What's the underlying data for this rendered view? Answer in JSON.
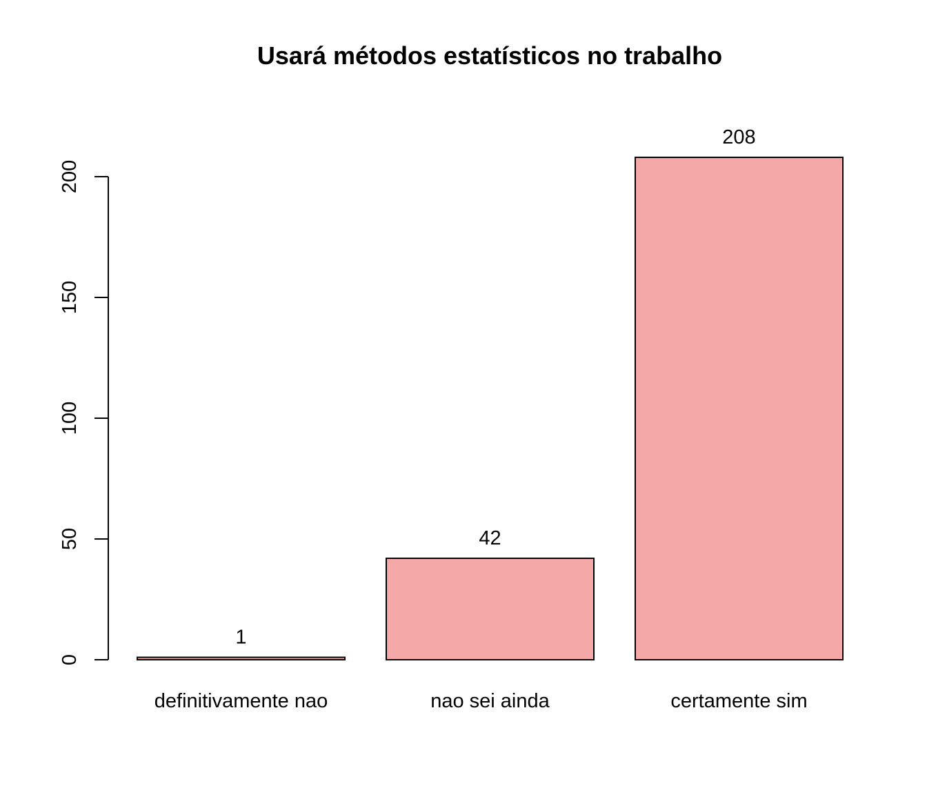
{
  "chart_data": {
    "type": "bar",
    "title": "Usará métodos estatísticos no trabalho",
    "xlabel": "",
    "ylabel": "",
    "categories": [
      "definitivamente nao",
      "nao sei ainda",
      "certamente sim"
    ],
    "values": [
      1,
      42,
      208
    ],
    "data_labels": [
      "1",
      "42",
      "208"
    ],
    "yticks": [
      0,
      50,
      100,
      150,
      200
    ],
    "ylim": [
      0,
      208
    ],
    "grid": false,
    "legend": "none",
    "bar_color": "#f4a8a8"
  }
}
